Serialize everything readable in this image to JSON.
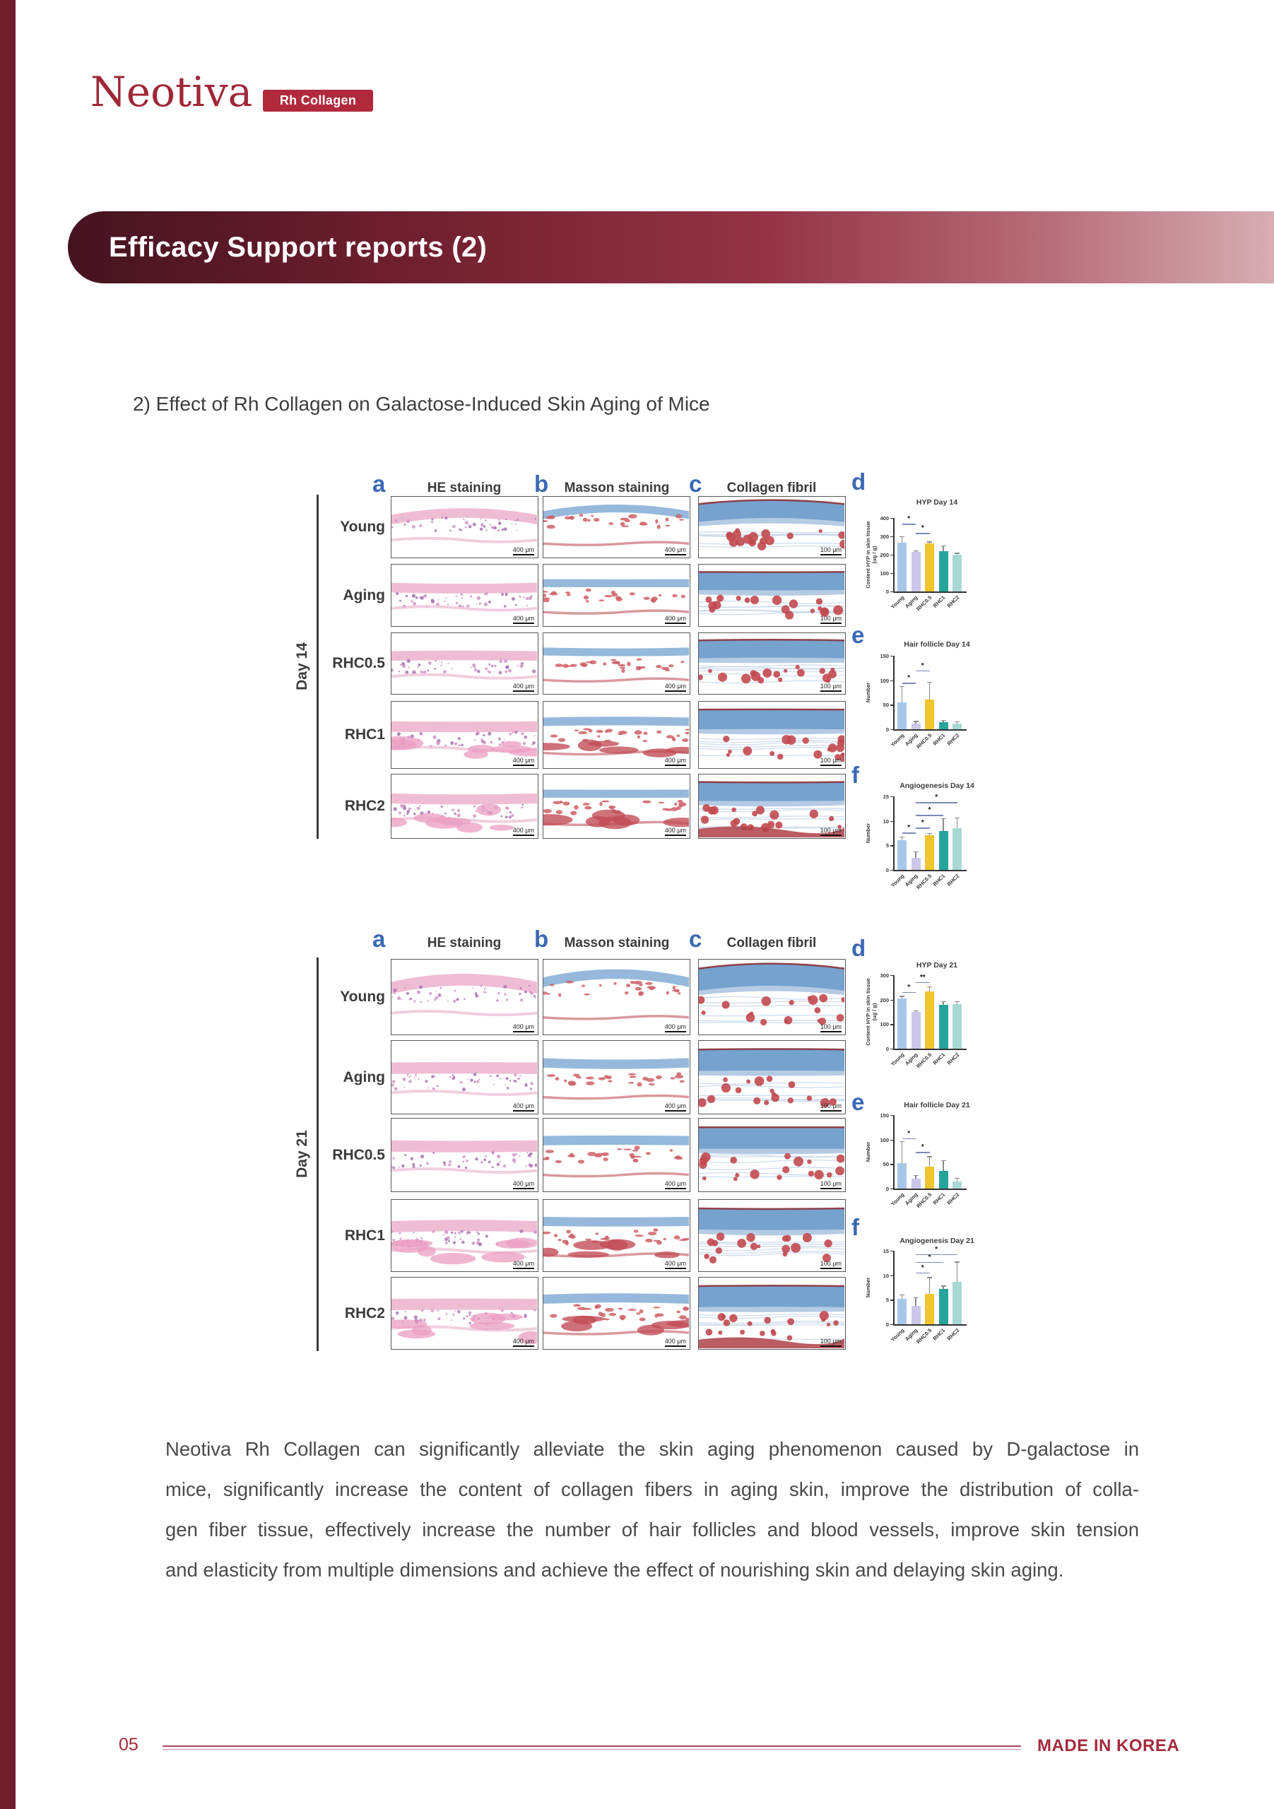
{
  "page": {
    "brand": "Neotiva",
    "brand_badge": "Rh Collagen",
    "banner_title": "Efficacy Support reports (2)",
    "section_title": "2) Effect of Rh Collagen on Galactose-Induced Skin Aging of Mice",
    "page_number": "05",
    "footer_right": "MADE IN KOREA"
  },
  "colors": {
    "brand_red": "#a42a3e",
    "badge_red": "#b12a3c",
    "banner_dark": "#451320",
    "banner_light": "#d6aeb3",
    "letter_blue": "#3a68b4",
    "bar_palette": [
      "#a9c8e9",
      "#ccc7e8",
      "#f0c52f",
      "#26a39a",
      "#a8d8d4"
    ]
  },
  "figure": {
    "groups": [
      {
        "day_label": "Day 14",
        "rows": [
          "Young",
          "Aging",
          "RHC0.5",
          "RHC1",
          "RHC2"
        ],
        "columns": [
          {
            "letter": "a",
            "label": "HE staining",
            "scale": "400 μm",
            "type": "he"
          },
          {
            "letter": "b",
            "label": "Masson staining",
            "scale": "400 μm",
            "type": "masson"
          },
          {
            "letter": "c",
            "label": "Collagen fibril",
            "scale": "100 μm",
            "type": "collagen"
          }
        ],
        "chart_refs": [
          0,
          1,
          2
        ]
      },
      {
        "day_label": "Day 21",
        "rows": [
          "Young",
          "Aging",
          "RHC0.5",
          "RHC1",
          "RHC2"
        ],
        "columns": [
          {
            "letter": "a",
            "label": "HE staining",
            "scale": "400 μm",
            "type": "he"
          },
          {
            "letter": "b",
            "label": "Masson staining",
            "scale": "400 μm",
            "type": "masson"
          },
          {
            "letter": "c",
            "label": "Collagen fibril",
            "scale": "100 μm",
            "type": "collagen"
          }
        ],
        "chart_refs": [
          3,
          4,
          5
        ]
      }
    ]
  },
  "chart_data": [
    {
      "type": "bar",
      "letter": "d",
      "title": "HYP Day 14",
      "ylabel": [
        "Content HYP in skin tissue",
        "(ug / g)"
      ],
      "categories": [
        "Young",
        "Aging",
        "RHC0.5",
        "RHC1",
        "RHC2"
      ],
      "values": [
        265,
        215,
        260,
        220,
        200
      ],
      "errors": [
        35,
        10,
        12,
        30,
        10
      ],
      "ylim": [
        0,
        400
      ],
      "yticks": [
        0,
        100,
        200,
        300,
        400
      ],
      "sig": [
        {
          "a": 0,
          "b": 1,
          "y": 368,
          "label": "*"
        },
        {
          "a": 1,
          "b": 2,
          "y": 318,
          "label": "*"
        }
      ]
    },
    {
      "type": "bar",
      "letter": "e",
      "title": "Hair follicle Day 14",
      "ylabel": [
        "Number"
      ],
      "categories": [
        "Young",
        "Aging",
        "RHC0.5",
        "RHC1",
        "RHC2"
      ],
      "values": [
        55,
        12,
        60,
        15,
        12
      ],
      "errors": [
        33,
        5,
        37,
        4,
        4
      ],
      "ylim": [
        0,
        150
      ],
      "yticks": [
        0,
        50,
        100,
        150
      ],
      "sig": [
        {
          "a": 0,
          "b": 1,
          "y": 95,
          "label": "*"
        },
        {
          "a": 1,
          "b": 2,
          "y": 120,
          "label": "*"
        }
      ]
    },
    {
      "type": "bar",
      "letter": "f",
      "title": "Angiogenesis Day 14",
      "ylabel": [
        "Number"
      ],
      "categories": [
        "Young",
        "Aging",
        "RHC0.5",
        "RHC1",
        "RHC2"
      ],
      "values": [
        6,
        2.5,
        7,
        8,
        8.5
      ],
      "errors": [
        0.8,
        1.3,
        0.5,
        2.6,
        2.2
      ],
      "ylim": [
        0,
        15
      ],
      "yticks": [
        0,
        5,
        10,
        15
      ],
      "sig": [
        {
          "a": 0,
          "b": 1,
          "y": 7.6,
          "label": "*"
        },
        {
          "a": 1,
          "b": 2,
          "y": 8.6,
          "label": "*"
        },
        {
          "a": 1,
          "b": 3,
          "y": 11.2,
          "label": "*"
        },
        {
          "a": 1,
          "b": 4,
          "y": 13.8,
          "label": "*"
        }
      ]
    },
    {
      "type": "bar",
      "letter": "d",
      "title": "HYP Day 21",
      "ylabel": [
        "Content HYP in skin tissue",
        "(ug / g)"
      ],
      "categories": [
        "Young",
        "Aging",
        "RHC0.5",
        "RHC1",
        "RHC2"
      ],
      "values": [
        205,
        150,
        235,
        180,
        182
      ],
      "errors": [
        10,
        7,
        20,
        13,
        12
      ],
      "ylim": [
        0,
        300
      ],
      "yticks": [
        0,
        100,
        200,
        300
      ],
      "sig": [
        {
          "a": 0,
          "b": 1,
          "y": 232,
          "label": "*"
        },
        {
          "a": 1,
          "b": 2,
          "y": 272,
          "label": "**"
        }
      ]
    },
    {
      "type": "bar",
      "letter": "e",
      "title": "Hair follicle Day 21",
      "ylabel": [
        "Number"
      ],
      "categories": [
        "Young",
        "Aging",
        "RHC0.5",
        "RHC1",
        "RHC2"
      ],
      "values": [
        52,
        20,
        44,
        36,
        14
      ],
      "errors": [
        45,
        8,
        22,
        22,
        8
      ],
      "ylim": [
        0,
        150
      ],
      "yticks": [
        0,
        50,
        100,
        150
      ],
      "sig": [
        {
          "a": 0,
          "b": 1,
          "y": 103,
          "label": "*"
        },
        {
          "a": 1,
          "b": 2,
          "y": 75,
          "label": "*"
        }
      ]
    },
    {
      "type": "bar",
      "letter": "f",
      "title": "Angiogenesis Day 21",
      "ylabel": [
        "Number"
      ],
      "categories": [
        "Young",
        "Aging",
        "RHC0.5",
        "RHC1",
        "RHC2"
      ],
      "values": [
        5.2,
        3.8,
        6.2,
        7.2,
        8.6
      ],
      "errors": [
        0.9,
        1.7,
        3.4,
        0.7,
        4.2
      ],
      "ylim": [
        0,
        15
      ],
      "yticks": [
        0,
        5,
        10,
        15
      ],
      "sig": [
        {
          "a": 1,
          "b": 2,
          "y": 10.6,
          "label": "*"
        },
        {
          "a": 1,
          "b": 3,
          "y": 12.7,
          "label": "*"
        },
        {
          "a": 1,
          "b": 4,
          "y": 14.3,
          "label": "*"
        }
      ]
    }
  ],
  "paragraph": {
    "lines": [
      "Neotiva Rh Collagen can significantly alleviate the skin aging phenomenon caused by D-galactose in",
      "mice, significantly increase the content of collagen fibers in aging skin, improve the distribution of colla-",
      "gen fiber tissue, effectively increase the number of hair follicles and blood vessels, improve skin tension",
      "and elasticity from multiple dimensions and achieve the effect of nourishing skin and delaying skin aging."
    ]
  }
}
